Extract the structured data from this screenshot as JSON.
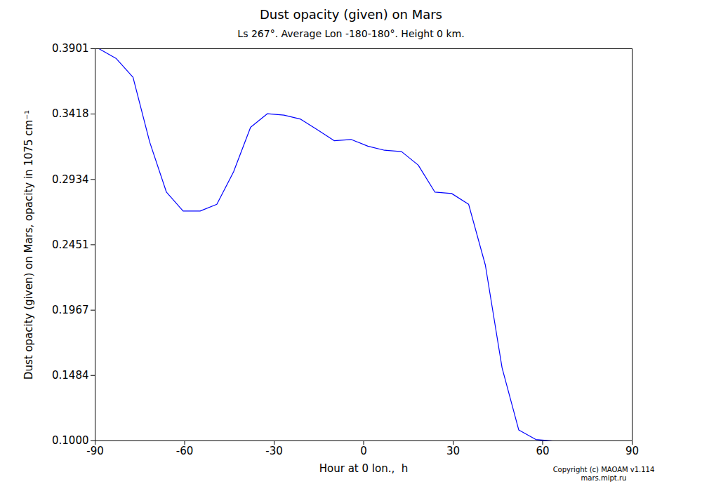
{
  "chart_data": {
    "type": "line",
    "title": "Dust opacity (given) on Mars",
    "subtitle": "Ls 267°. Average Lon -180-180°. Height 0 km.",
    "x_label": "Hour at 0 lon.,  h",
    "y_label": "Dust opacity (given) on Mars, opacity in 1075 cm⁻¹",
    "annotations": [
      "Copyright (c) MAOAM v1.114",
      "mars.mipt.ru"
    ],
    "x": [
      -88.6,
      -83.0,
      -77.3,
      -71.7,
      -66.1,
      -60.5,
      -54.8,
      -49.2,
      -43.6,
      -37.9,
      -32.3,
      -26.7,
      -21.1,
      -15.4,
      -9.8,
      -4.2,
      1.4,
      7.0,
      12.7,
      18.3,
      23.9,
      29.5,
      35.2,
      40.8,
      46.4,
      52.0,
      57.7,
      63.3,
      68.9,
      74.5,
      80.2,
      85.8
    ],
    "series": [
      {
        "name": "Dust opacity (given)",
        "color": "#0000ff",
        "values": [
          0.39,
          0.383,
          0.369,
          0.321,
          0.284,
          0.27,
          0.27,
          0.275,
          0.299,
          0.332,
          0.342,
          0.341,
          0.338,
          0.33,
          0.322,
          0.323,
          0.318,
          0.315,
          0.314,
          0.304,
          0.284,
          0.283,
          0.275,
          0.23,
          0.154,
          0.108,
          0.101,
          0.1,
          0.1,
          0.1,
          0.1,
          0.1
        ]
      }
    ],
    "xlim": [
      -90,
      90
    ],
    "xticks": [
      -90,
      -60,
      -30,
      0,
      30,
      60,
      90
    ],
    "ylim": [
      0.1,
      0.3901
    ],
    "yticks": [
      {
        "value": 0.1,
        "label": "0.1000"
      },
      0.1484,
      0.1967,
      0.2451,
      0.2934,
      0.3418,
      0.3901
    ],
    "grid": false
  }
}
